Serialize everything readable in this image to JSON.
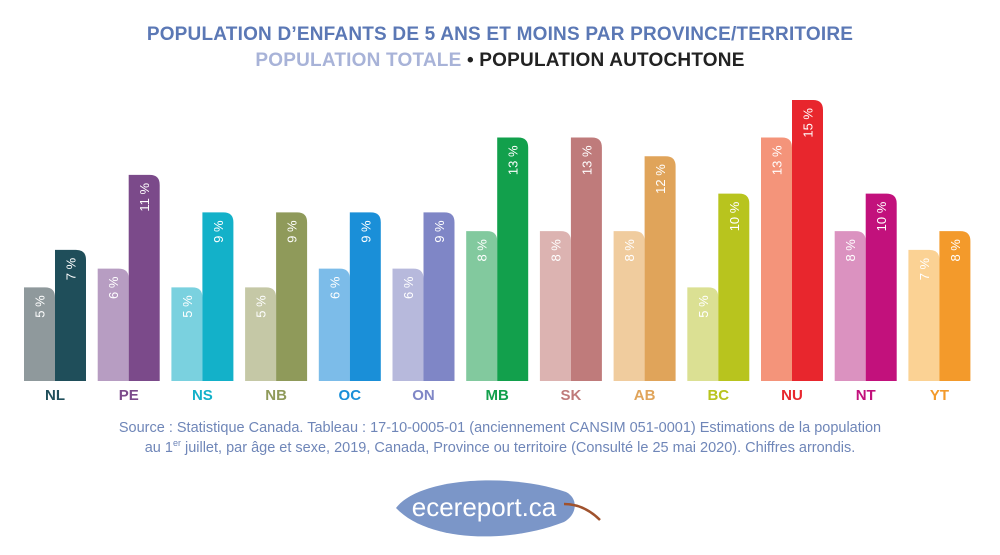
{
  "title": "POPULATION D’ENFANTS DE 5 ANS ET MOINS PAR PROVINCE/TERRITOIRE",
  "subtitle": {
    "total": "POPULATION TOTALE",
    "separator": "•",
    "aboriginal": "POPULATION AUTOCHTONE"
  },
  "source": {
    "line1": "Source : Statistique Canada. Tableau : 17-10-0005-01 (anciennement CANSIM 051-0001) Estimations de la population",
    "line2_prefix": "au 1",
    "line2_sup": "er",
    "line2_rest": " juillet, par âge et sexe, 2019, Canada, Province ou territoire (Consulté le 25 mai 2020). Chiffres arrondis."
  },
  "logo": {
    "text": "ecereport.ca",
    "color": "#7b96c8",
    "stem_color": "#a0522d"
  },
  "chart_data": {
    "type": "bar",
    "unit": "%",
    "ylim": [
      0,
      15
    ],
    "categories": [
      "NL",
      "PE",
      "NS",
      "NB",
      "QC",
      "ON",
      "MB",
      "SK",
      "AB",
      "BC",
      "NU",
      "NT",
      "YT"
    ],
    "category_colors": [
      "#1f4e5a",
      "#7b4a8a",
      "#13b1c9",
      "#8f9a5a",
      "#1a8fd8",
      "#7f86c6",
      "#12a04c",
      "#bf7b7b",
      "#e0a45a",
      "#b8c41e",
      "#e8262d",
      "#c2117c",
      "#f39a2b"
    ],
    "series": [
      {
        "name": "POPULATION TOTALE",
        "values": [
          5,
          6,
          5,
          5,
          6,
          6,
          8,
          8,
          8,
          5,
          13,
          8,
          7
        ],
        "colors": [
          "#8f999c",
          "#b79dc2",
          "#7ad1df",
          "#c5c8a6",
          "#7cbce9",
          "#b7b9dc",
          "#82c99e",
          "#dcb3b1",
          "#f0cc9e",
          "#dbe093",
          "#f4947a",
          "#db92c0",
          "#fbd294"
        ],
        "labels": [
          "5 %",
          "6 %",
          "5 %",
          "5 %",
          "6 %",
          "6 %",
          "8 %",
          "8 %",
          "8 %",
          "5 %",
          "13 %",
          "8 %",
          "7 %"
        ]
      },
      {
        "name": "POPULATION AUTOCHTONE",
        "values": [
          7,
          11,
          9,
          9,
          9,
          9,
          13,
          13,
          12,
          10,
          15,
          10,
          8
        ],
        "colors": [
          "#1f4e5a",
          "#7b4a8a",
          "#13b1c9",
          "#8f9a5a",
          "#1a8fd8",
          "#7f86c6",
          "#12a04c",
          "#bf7b7b",
          "#e0a45a",
          "#b8c41e",
          "#e8262d",
          "#c2117c",
          "#f39a2b"
        ],
        "labels": [
          "7 %",
          "11 %",
          "9 %",
          "9 %",
          "9 %",
          "9 %",
          "13 %",
          "13 %",
          "12 %",
          "10 %",
          "15 %",
          "10 %",
          "8 %"
        ]
      }
    ]
  }
}
